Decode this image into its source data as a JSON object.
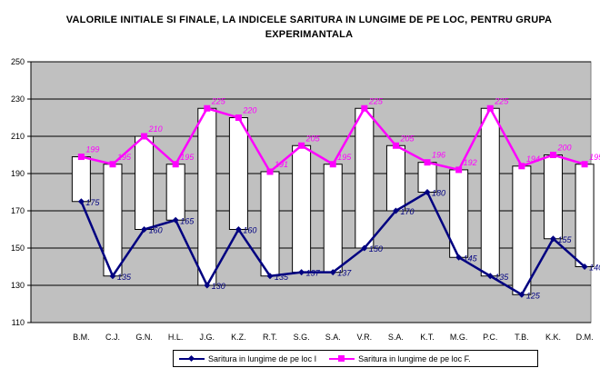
{
  "chart_data": {
    "type": "line",
    "title_line1": "VALORILE INITIALE SI FINALE, LA INDICELE SARITURA IN LUNGIME DE PE LOC, PENTRU GRUPA",
    "title_line2": "EXPERIMANTALA",
    "categories": [
      "B.M.",
      "C.J.",
      "G.N.",
      "H.L.",
      "J.G.",
      "K.Z.",
      "R.T.",
      "S.G.",
      "S.A.",
      "V.R.",
      "S.A.",
      "K.T.",
      "M.G.",
      "P.C.",
      "T.B.",
      "K.K.",
      "D.M."
    ],
    "ylim": [
      110,
      250
    ],
    "yticks": [
      110,
      130,
      150,
      170,
      190,
      210,
      230,
      250
    ],
    "grid": true,
    "plot_background": "#c0c0c0",
    "high_low_lines": true,
    "series": [
      {
        "name": "Saritura in lungime de pe loc I",
        "color": "#000080",
        "marker": "diamond",
        "values": [
          175,
          135,
          160,
          165,
          130,
          160,
          135,
          137,
          137,
          150,
          170,
          180,
          145,
          135,
          125,
          155,
          140
        ]
      },
      {
        "name": "Saritura in lungime de pe loc F.",
        "color": "#ff00ff",
        "marker": "square",
        "values": [
          199,
          195,
          210,
          195,
          225,
          220,
          191,
          205,
          195,
          225,
          205,
          196,
          192,
          225,
          194,
          200,
          195
        ]
      }
    ],
    "legend_position": "bottom"
  }
}
